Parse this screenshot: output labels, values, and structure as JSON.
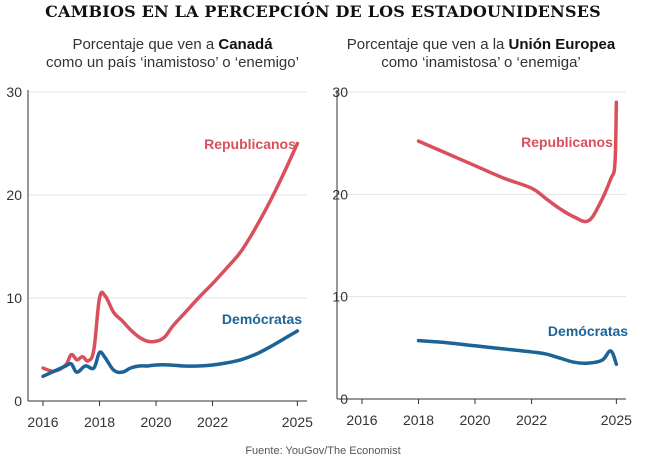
{
  "title": "CAMBIOS EN LA PERCEPCIÓN DE LOS ESTADOUNIDENSES",
  "source": "Fuente: YouGov/The Economist",
  "colors": {
    "republicanos": "#d9505c",
    "democratas": "#1c6397",
    "axis": "#333333",
    "grid": "#e3e3e3"
  },
  "chart_data": [
    {
      "type": "line",
      "subtitle": {
        "line1_prefix": "Porcentaje que ven a ",
        "line1_bold": "Canadá",
        "line2": "como un país ‘inamistoso’ o ‘enemigo’"
      },
      "xlim": [
        2016,
        2025.2
      ],
      "ylim": [
        0,
        30
      ],
      "xticks": [
        2016,
        2018,
        2020,
        2022,
        2025
      ],
      "yticks": [
        0,
        10,
        20,
        30
      ],
      "series": [
        {
          "name": "Republicanos",
          "color": "#d9505c",
          "x": [
            2016,
            2016.4,
            2016.8,
            2017.0,
            2017.2,
            2017.4,
            2017.6,
            2017.8,
            2018.0,
            2018.2,
            2018.5,
            2018.8,
            2019.1,
            2019.4,
            2019.7,
            2020.0,
            2020.3,
            2020.6,
            2021.0,
            2021.5,
            2022.0,
            2022.5,
            2023.0,
            2023.5,
            2024.0,
            2024.5,
            2025.0
          ],
          "values": [
            3.2,
            2.9,
            3.5,
            4.5,
            4.0,
            4.3,
            3.9,
            5.0,
            10.0,
            10.2,
            8.6,
            7.8,
            6.9,
            6.2,
            5.8,
            5.8,
            6.2,
            7.3,
            8.5,
            10.0,
            11.4,
            12.9,
            14.5,
            16.7,
            19.2,
            22.0,
            25.0
          ]
        },
        {
          "name": "Demócratas",
          "color": "#1c6397",
          "x": [
            2016,
            2016.4,
            2016.8,
            2017.0,
            2017.2,
            2017.5,
            2017.8,
            2018.0,
            2018.2,
            2018.5,
            2018.8,
            2019.1,
            2019.4,
            2019.7,
            2020.0,
            2020.5,
            2021.0,
            2021.5,
            2022.0,
            2022.5,
            2023.0,
            2023.5,
            2024.0,
            2024.5,
            2025.0
          ],
          "values": [
            2.4,
            2.9,
            3.4,
            3.6,
            2.8,
            3.4,
            3.2,
            4.7,
            4.2,
            3.0,
            2.8,
            3.2,
            3.4,
            3.4,
            3.5,
            3.5,
            3.4,
            3.4,
            3.5,
            3.7,
            4.0,
            4.5,
            5.2,
            6.0,
            6.8
          ]
        }
      ],
      "annotations": [
        {
          "text": "Republicanos",
          "series": "Republicanos"
        },
        {
          "text": "Demócratas",
          "series": "Demócratas"
        }
      ]
    },
    {
      "type": "line",
      "subtitle": {
        "line1_prefix": "Porcentaje que ven a la ",
        "line1_bold": "Unión Europea",
        "line2": "como ‘inamistosa’ o ‘enemiga’"
      },
      "xlim": [
        2016,
        2025.2
      ],
      "ylim": [
        0,
        30
      ],
      "xticks": [
        2016,
        2018,
        2020,
        2022,
        2025
      ],
      "yticks": [
        0,
        10,
        20,
        30
      ],
      "series": [
        {
          "name": "Republicanos",
          "color": "#d9505c",
          "x": [
            2018.0,
            2019.0,
            2020.0,
            2021.0,
            2022.0,
            2022.5,
            2023.0,
            2023.5,
            2024.0,
            2024.4,
            2024.8,
            2024.95,
            2025.0
          ],
          "values": [
            25.2,
            24.0,
            22.8,
            21.6,
            20.6,
            19.6,
            18.6,
            17.8,
            17.4,
            19.0,
            21.5,
            23.0,
            29.0
          ]
        },
        {
          "name": "Demócratas",
          "color": "#1c6397",
          "x": [
            2018.0,
            2019.0,
            2020.0,
            2021.0,
            2022.0,
            2022.5,
            2023.0,
            2023.5,
            2024.0,
            2024.5,
            2024.8,
            2025.0
          ],
          "values": [
            5.7,
            5.5,
            5.2,
            4.9,
            4.6,
            4.4,
            4.0,
            3.6,
            3.5,
            3.8,
            4.7,
            3.4
          ]
        }
      ],
      "annotations": [
        {
          "text": "Republicanos",
          "series": "Republicanos"
        },
        {
          "text": "Demócratas",
          "series": "Demócratas"
        }
      ]
    }
  ]
}
